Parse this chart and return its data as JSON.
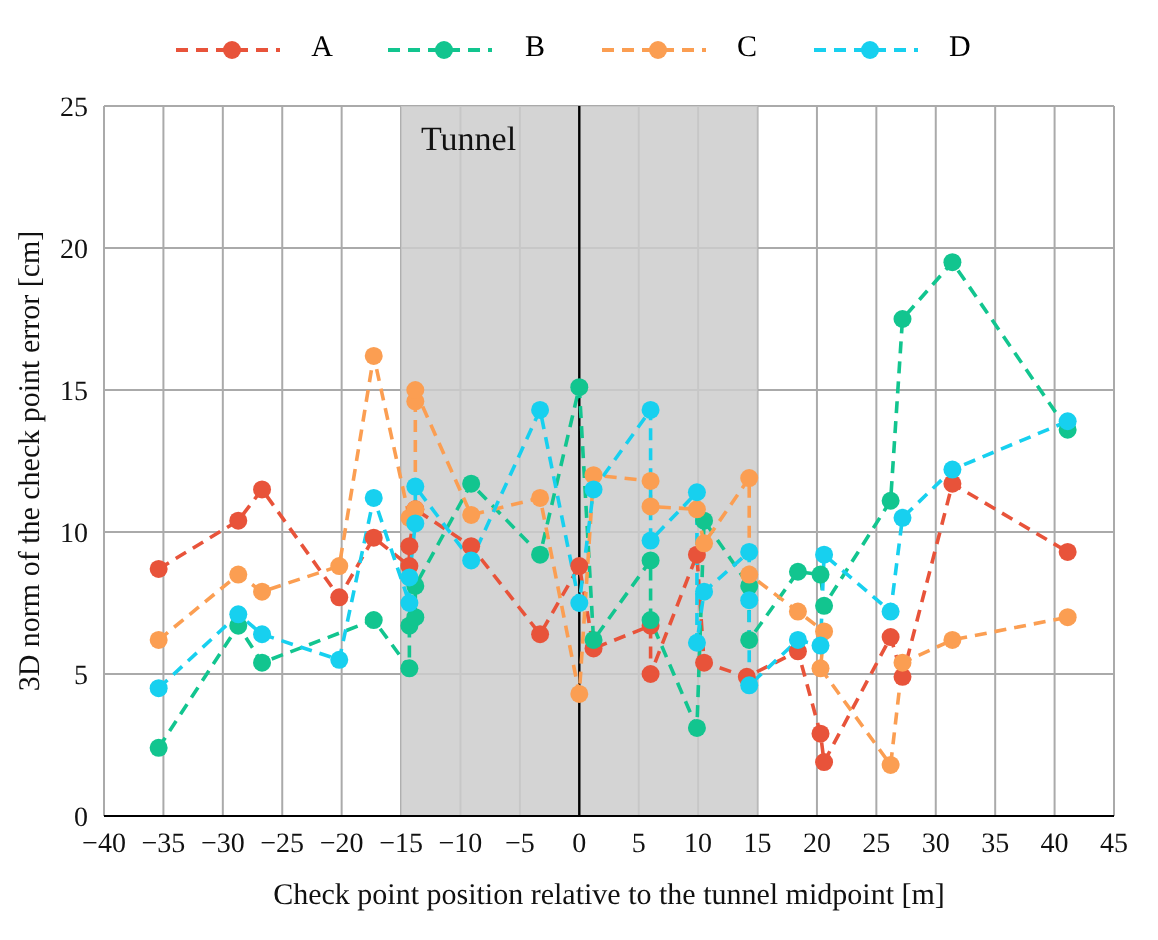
{
  "chart_data": {
    "type": "line",
    "xlabel": "Check point position relative to the tunnel midpoint [m]",
    "ylabel": "3D norm of the check point error [cm]",
    "xlim": [
      -40,
      45
    ],
    "xticks": [
      -40,
      -35,
      -30,
      -25,
      -20,
      -15,
      -10,
      -5,
      0,
      5,
      10,
      15,
      20,
      25,
      30,
      35,
      40,
      45
    ],
    "ylim": [
      0,
      25
    ],
    "yticks": [
      0,
      5,
      10,
      15,
      20,
      25
    ],
    "grid": true,
    "legend": "top",
    "marker": "circle",
    "line_style": "dashed",
    "bands": [
      {
        "axis": "x",
        "from": -15,
        "to": 15,
        "label": "Tunnel",
        "color": "#cccccc"
      }
    ],
    "ref_lines": [
      {
        "axis": "x",
        "value": 0,
        "color": "#000000"
      }
    ],
    "series": [
      {
        "name": "A",
        "color": "#e8533a",
        "x": [
          -35.4,
          -28.7,
          -26.7,
          -20.2,
          -17.3,
          -14.3,
          -14.3,
          -13.8,
          -9.1,
          -3.3,
          0,
          1.2,
          6,
          6,
          9.9,
          10.5,
          14.1,
          18.4,
          20.3,
          20.6,
          26.2,
          27.2,
          31.4,
          41.1
        ],
        "values": [
          8.7,
          10.4,
          11.5,
          7.7,
          9.8,
          8.8,
          9.5,
          10.8,
          9.5,
          6.4,
          8.8,
          5.9,
          6.7,
          5.0,
          9.2,
          5.4,
          4.9,
          5.8,
          2.9,
          1.9,
          6.3,
          4.9,
          11.7,
          9.3
        ]
      },
      {
        "name": "B",
        "color": "#12c58f",
        "x": [
          -35.4,
          -28.7,
          -26.7,
          -17.3,
          -14.3,
          -14.3,
          -13.8,
          -13.8,
          -9.1,
          -3.3,
          0,
          1.2,
          6,
          6,
          9.9,
          10.5,
          14.3,
          14.3,
          18.4,
          20.3,
          20.6,
          26.2,
          27.2,
          31.4,
          41.1
        ],
        "values": [
          2.4,
          6.7,
          5.4,
          6.9,
          5.2,
          6.7,
          7.0,
          8.1,
          11.7,
          9.2,
          15.1,
          6.2,
          9.0,
          6.9,
          3.1,
          10.4,
          8.1,
          6.2,
          8.6,
          8.5,
          7.4,
          11.1,
          17.5,
          19.5,
          13.6
        ]
      },
      {
        "name": "C",
        "color": "#fb9e52",
        "x": [
          -35.4,
          -28.7,
          -26.7,
          -20.2,
          -17.3,
          -14.3,
          -13.8,
          -13.8,
          -13.8,
          -9.1,
          -3.3,
          0,
          1.2,
          6,
          6,
          9.9,
          10.5,
          14.3,
          14.3,
          18.4,
          20.6,
          20.3,
          26.2,
          27.2,
          31.4,
          41.1
        ],
        "values": [
          6.2,
          8.5,
          7.9,
          8.8,
          16.2,
          10.5,
          10.8,
          14.6,
          15.0,
          10.6,
          11.2,
          4.3,
          12.0,
          11.8,
          10.9,
          10.8,
          9.6,
          11.9,
          8.5,
          7.2,
          6.5,
          5.2,
          1.8,
          5.4,
          6.2,
          7.0
        ]
      },
      {
        "name": "D",
        "color": "#17d0ef",
        "x": [
          -35.4,
          -28.7,
          -26.7,
          -20.2,
          -17.3,
          -14.3,
          -14.3,
          -13.8,
          -13.8,
          -9.1,
          -3.3,
          0,
          1.2,
          6,
          6,
          9.9,
          9.9,
          10.5,
          14.3,
          14.3,
          14.3,
          18.4,
          20.3,
          20.6,
          26.2,
          27.2,
          31.4,
          41.1
        ],
        "values": [
          4.5,
          7.1,
          6.4,
          5.5,
          11.2,
          7.5,
          8.4,
          10.3,
          11.6,
          9.0,
          14.3,
          7.5,
          11.5,
          14.3,
          9.7,
          11.4,
          6.1,
          7.9,
          9.3,
          7.6,
          4.6,
          6.2,
          6.0,
          9.2,
          7.2,
          10.5,
          12.2,
          13.9
        ]
      }
    ]
  }
}
